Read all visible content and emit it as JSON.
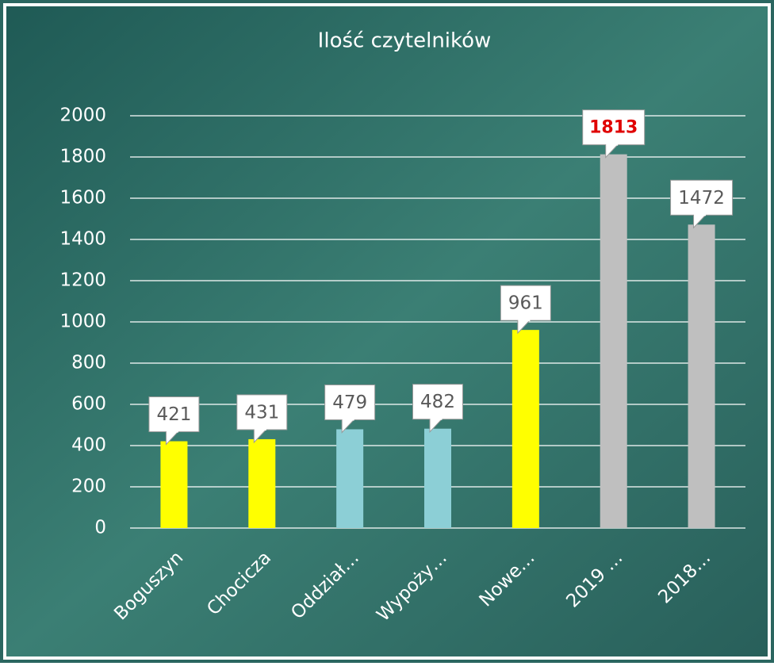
{
  "chart_data": {
    "type": "bar",
    "title": "Ilość czytelników",
    "categories": [
      "Boguszyn",
      "Chocicza",
      "Oddział…",
      "Wypoży…",
      "Nowe…",
      "2019 …",
      "2018…"
    ],
    "values": [
      421,
      431,
      479,
      482,
      961,
      1813,
      1472
    ],
    "colors": [
      "#ffff00",
      "#ffff00",
      "#8ccfd6",
      "#8ccfd6",
      "#ffff00",
      "#bfbfbf",
      "#bfbfbf"
    ],
    "label_colors": [
      "#595959",
      "#595959",
      "#595959",
      "#595959",
      "#595959",
      "#e00000",
      "#595959"
    ],
    "ylim": [
      0,
      2000
    ],
    "yticks": [
      0,
      200,
      400,
      600,
      800,
      1000,
      1200,
      1400,
      1600,
      1800,
      2000
    ],
    "grid": true
  }
}
